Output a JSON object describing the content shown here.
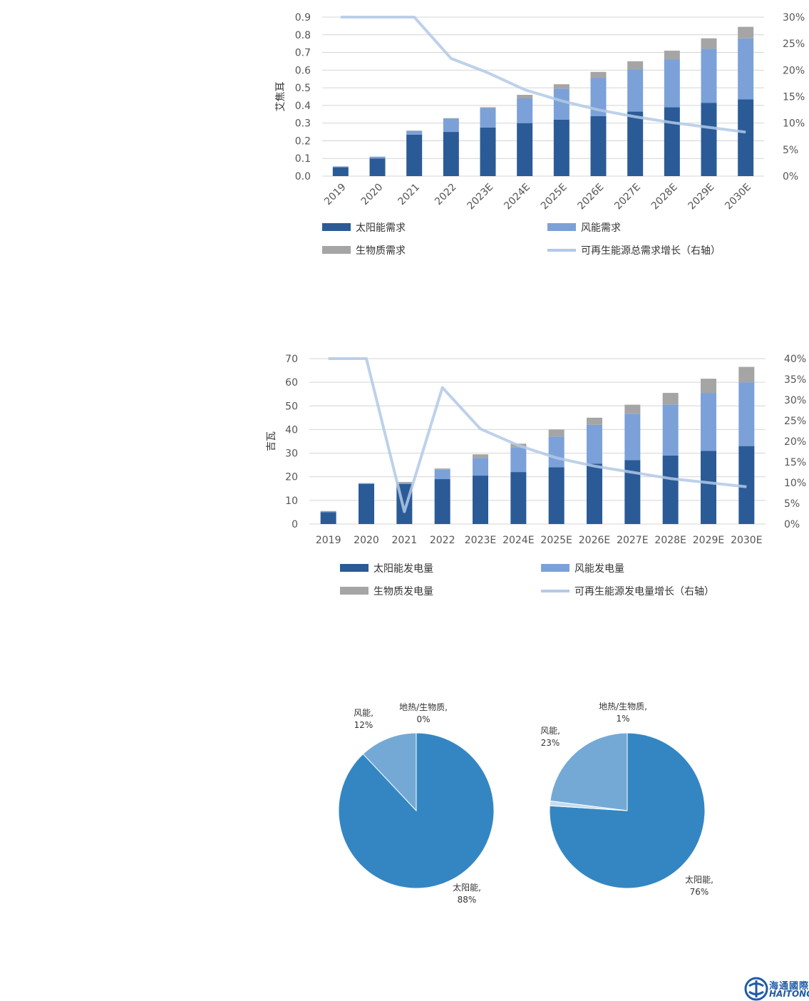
{
  "chart_data": [
    {
      "type": "bar",
      "stacked": true,
      "ylabel": "艾焦耳",
      "ylim": [
        0,
        0.9
      ],
      "yticks": [
        "0.0",
        "0.1",
        "0.2",
        "0.3",
        "0.4",
        "0.5",
        "0.6",
        "0.7",
        "0.8",
        "0.9"
      ],
      "y2lim": [
        0,
        30
      ],
      "y2ticks": [
        "0%",
        "5%",
        "10%",
        "15%",
        "20%",
        "25%",
        "30%"
      ],
      "categories": [
        "2019",
        "2020",
        "2021",
        "2022",
        "2023E",
        "2024E",
        "2025E",
        "2026E",
        "2027E",
        "2028E",
        "2029E",
        "2030E"
      ],
      "series": [
        {
          "name": "太阳能需求",
          "kind": "bar",
          "color": "#2a5b97",
          "values": [
            0.05,
            0.1,
            0.235,
            0.25,
            0.275,
            0.3,
            0.32,
            0.34,
            0.365,
            0.39,
            0.415,
            0.435
          ]
        },
        {
          "name": "风能需求",
          "kind": "bar",
          "color": "#7ba1d8",
          "values": [
            0.005,
            0.01,
            0.02,
            0.075,
            0.11,
            0.14,
            0.175,
            0.215,
            0.24,
            0.27,
            0.305,
            0.345
          ]
        },
        {
          "name": "生物质需求",
          "kind": "bar",
          "color": "#a5a5a5",
          "values": [
            0,
            0,
            0.003,
            0.003,
            0.005,
            0.02,
            0.025,
            0.035,
            0.045,
            0.05,
            0.06,
            0.065
          ]
        },
        {
          "name": "可再生能源总需求增长（右轴）",
          "kind": "line",
          "axis": "right",
          "color": "#b3c9e6",
          "values": [
            30,
            30,
            30,
            22.2,
            19.5,
            16.3,
            14.2,
            12.5,
            11.2,
            10.1,
            9.2,
            8.3
          ]
        }
      ],
      "legend": "bottom"
    },
    {
      "type": "bar",
      "stacked": true,
      "ylabel": "吉瓦",
      "ylim": [
        0,
        70
      ],
      "yticks": [
        "0",
        "10",
        "20",
        "30",
        "40",
        "50",
        "60",
        "70"
      ],
      "y2lim": [
        0,
        40
      ],
      "y2ticks": [
        "0%",
        "5%",
        "10%",
        "15%",
        "20%",
        "25%",
        "30%",
        "35%",
        "40%"
      ],
      "categories": [
        "2019",
        "2020",
        "2021",
        "2022",
        "2023E",
        "2024E",
        "2025E",
        "2026E",
        "2027E",
        "2028E",
        "2029E",
        "2030E"
      ],
      "series": [
        {
          "name": "太阳能发电量",
          "kind": "bar",
          "color": "#2a5b97",
          "values": [
            5,
            17,
            17,
            19,
            20.5,
            22,
            24,
            25.5,
            27,
            29,
            31,
            33
          ]
        },
        {
          "name": "风能发电量",
          "kind": "bar",
          "color": "#7ba1d8",
          "values": [
            0.5,
            0.3,
            0.3,
            4,
            7.5,
            10.5,
            13,
            16.5,
            19.5,
            21.5,
            24.5,
            27
          ]
        },
        {
          "name": "生物质发电量",
          "kind": "bar",
          "color": "#a5a5a5",
          "values": [
            0,
            0,
            0.5,
            0.5,
            1.5,
            1.5,
            3,
            3,
            4,
            5,
            6,
            6.5
          ]
        },
        {
          "name": "可再生能源发电量增长（右轴）",
          "kind": "line",
          "axis": "right",
          "color": "#b3c9e6",
          "values": [
            40,
            40,
            3,
            33,
            23,
            19,
            16,
            14,
            12.5,
            11,
            10,
            9
          ]
        }
      ],
      "legend": "bottom"
    },
    {
      "type": "pie",
      "slices": [
        {
          "label": "太阳能,",
          "pct": "88%",
          "value": 88,
          "color": "#3486c3"
        },
        {
          "label": "地热/生物质,",
          "pct": "0%",
          "value": 0,
          "color": "#c5dbef"
        },
        {
          "label": "风能,",
          "pct": "12%",
          "value": 12,
          "color": "#74a9d5"
        }
      ]
    },
    {
      "type": "pie",
      "slices": [
        {
          "label": "太阳能,",
          "pct": "76%",
          "value": 76,
          "color": "#3486c3"
        },
        {
          "label": "地热/生物质,",
          "pct": "1%",
          "value": 1,
          "color": "#c5dbef"
        },
        {
          "label": "风能,",
          "pct": "23%",
          "value": 23,
          "color": "#74a9d5"
        }
      ]
    }
  ],
  "brand": {
    "name_cn": "海通國際",
    "name_en": "HAITONG"
  }
}
